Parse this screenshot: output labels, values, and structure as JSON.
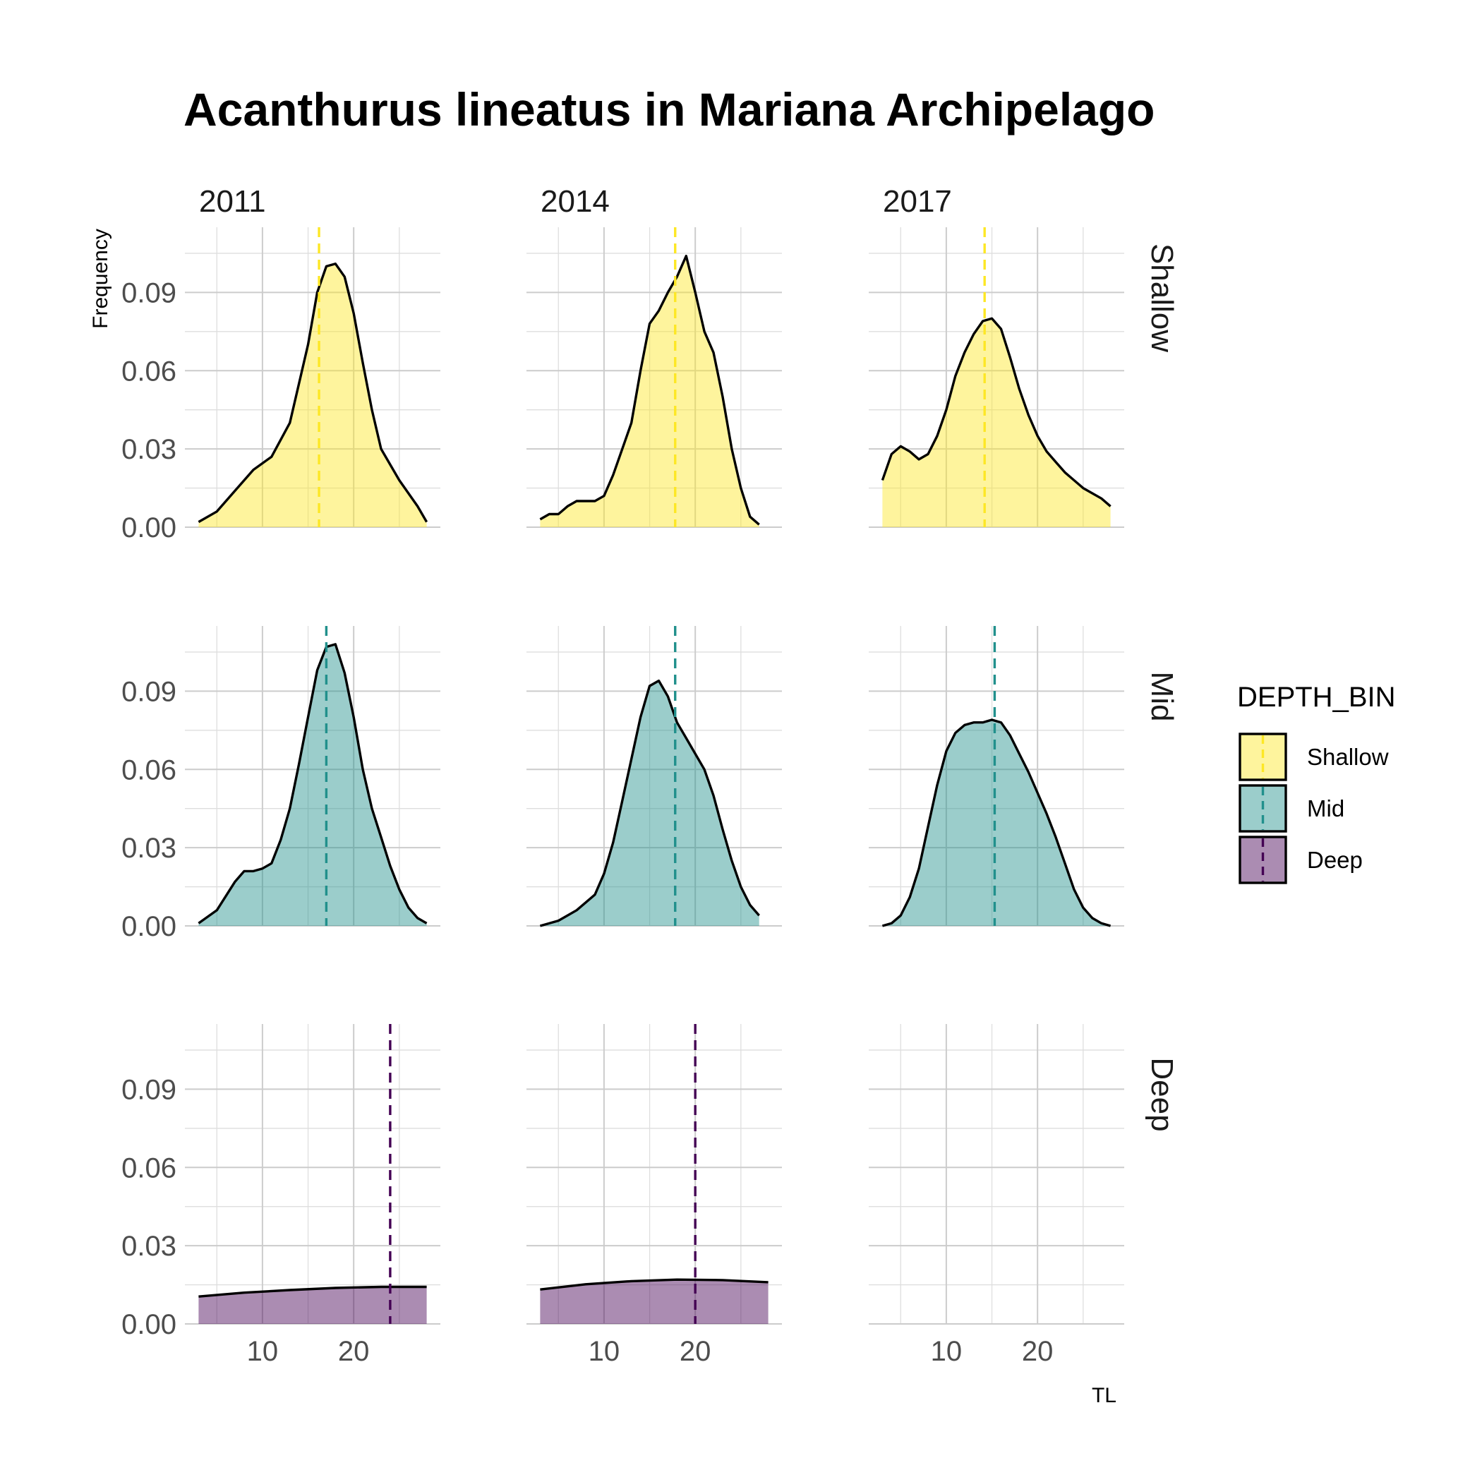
{
  "chart_data": {
    "type": "area",
    "title": "Acanthurus lineatus in Mariana Archipelago",
    "xlabel": "TL",
    "ylabel": "Frequency",
    "xlim": [
      1.5,
      29.5
    ],
    "ylim": [
      0,
      0.115
    ],
    "x_ticks": [
      10,
      20
    ],
    "x_tick_labels": [
      "10",
      "20"
    ],
    "x_minor_ticks": [
      5,
      15,
      25
    ],
    "y_ticks": [
      0,
      0.03,
      0.06,
      0.09
    ],
    "y_tick_labels": [
      "0.00",
      "0.03",
      "0.06",
      "0.09"
    ],
    "y_minor_ticks": [
      0.015,
      0.045,
      0.075,
      0.105
    ],
    "grid": true,
    "legend_position": "right",
    "column_labels": [
      "2011",
      "2014",
      "2017"
    ],
    "row_labels": [
      "Shallow",
      "Mid",
      "Deep"
    ],
    "legend": {
      "title": "DEPTH_BIN",
      "items": [
        {
          "label": "Shallow",
          "fill": "#FDE725",
          "line": "#FDE725"
        },
        {
          "label": "Mid",
          "fill": "#21908C",
          "line": "#21908C"
        },
        {
          "label": "Deep",
          "fill": "#440154",
          "line": "#440154"
        }
      ]
    },
    "fill_opacity": 0.45,
    "panels": [
      {
        "row": "Shallow",
        "col": "2011",
        "mean_line": 16.2,
        "x": [
          3,
          5,
          7,
          9,
          11,
          13,
          15,
          16,
          17,
          18,
          19,
          20,
          21,
          22,
          23,
          25,
          27,
          28
        ],
        "y": [
          0.002,
          0.006,
          0.014,
          0.022,
          0.027,
          0.04,
          0.07,
          0.09,
          0.1,
          0.101,
          0.096,
          0.082,
          0.063,
          0.045,
          0.03,
          0.018,
          0.008,
          0.002
        ]
      },
      {
        "row": "Shallow",
        "col": "2014",
        "mean_line": 17.8,
        "x": [
          3,
          4,
          5,
          6,
          7,
          8,
          9,
          10,
          11,
          12,
          13,
          14,
          15,
          16,
          17,
          18,
          19,
          20,
          21,
          22,
          23,
          24,
          25,
          26,
          27
        ],
        "y": [
          0.003,
          0.005,
          0.005,
          0.008,
          0.01,
          0.01,
          0.01,
          0.012,
          0.02,
          0.03,
          0.04,
          0.06,
          0.078,
          0.083,
          0.09,
          0.096,
          0.104,
          0.09,
          0.075,
          0.067,
          0.05,
          0.03,
          0.015,
          0.004,
          0.001
        ]
      },
      {
        "row": "Shallow",
        "col": "2017",
        "mean_line": 14.2,
        "x": [
          3,
          4,
          5,
          6,
          7,
          8,
          9,
          10,
          11,
          12,
          13,
          14,
          15,
          16,
          17,
          18,
          19,
          20,
          21,
          22,
          23,
          24,
          25,
          27,
          28
        ],
        "y": [
          0.018,
          0.028,
          0.031,
          0.029,
          0.026,
          0.028,
          0.035,
          0.045,
          0.058,
          0.067,
          0.074,
          0.079,
          0.08,
          0.076,
          0.065,
          0.053,
          0.043,
          0.035,
          0.029,
          0.025,
          0.021,
          0.018,
          0.015,
          0.011,
          0.008
        ]
      },
      {
        "row": "Mid",
        "col": "2011",
        "mean_line": 17.0,
        "x": [
          3,
          5,
          7,
          8,
          9,
          10,
          11,
          12,
          13,
          14,
          15,
          16,
          17,
          18,
          19,
          20,
          21,
          22,
          23,
          24,
          25,
          26,
          27,
          28
        ],
        "y": [
          0.001,
          0.006,
          0.017,
          0.021,
          0.021,
          0.022,
          0.024,
          0.033,
          0.045,
          0.062,
          0.08,
          0.098,
          0.107,
          0.108,
          0.097,
          0.08,
          0.06,
          0.045,
          0.034,
          0.023,
          0.014,
          0.007,
          0.003,
          0.001
        ]
      },
      {
        "row": "Mid",
        "col": "2014",
        "mean_line": 17.8,
        "x": [
          3,
          5,
          7,
          9,
          10,
          11,
          12,
          13,
          14,
          15,
          16,
          17,
          18,
          19,
          20,
          21,
          22,
          23,
          24,
          25,
          26,
          27
        ],
        "y": [
          0.0,
          0.002,
          0.006,
          0.012,
          0.02,
          0.032,
          0.048,
          0.064,
          0.08,
          0.092,
          0.094,
          0.088,
          0.078,
          0.072,
          0.066,
          0.06,
          0.05,
          0.037,
          0.025,
          0.015,
          0.008,
          0.004
        ]
      },
      {
        "row": "Mid",
        "col": "2017",
        "mean_line": 15.3,
        "x": [
          3,
          4,
          5,
          6,
          7,
          8,
          9,
          10,
          11,
          12,
          13,
          14,
          15,
          16,
          17,
          18,
          19,
          20,
          21,
          22,
          23,
          24,
          25,
          26,
          27,
          28
        ],
        "y": [
          0.0,
          0.001,
          0.004,
          0.011,
          0.022,
          0.038,
          0.054,
          0.067,
          0.074,
          0.077,
          0.078,
          0.078,
          0.079,
          0.078,
          0.073,
          0.066,
          0.059,
          0.051,
          0.043,
          0.034,
          0.024,
          0.014,
          0.007,
          0.003,
          0.001,
          0.0
        ]
      },
      {
        "row": "Deep",
        "col": "2011",
        "mean_line": 24.0,
        "x": [
          3,
          8,
          13,
          18,
          23,
          28
        ],
        "y": [
          0.0105,
          0.012,
          0.013,
          0.0138,
          0.0142,
          0.0142
        ]
      },
      {
        "row": "Deep",
        "col": "2014",
        "mean_line": 20.0,
        "x": [
          3,
          8,
          13,
          18,
          23,
          28
        ],
        "y": [
          0.0132,
          0.0152,
          0.0164,
          0.017,
          0.0168,
          0.016
        ]
      },
      {
        "row": "Deep",
        "col": "2017",
        "mean_line": null,
        "x": [],
        "y": []
      }
    ]
  }
}
